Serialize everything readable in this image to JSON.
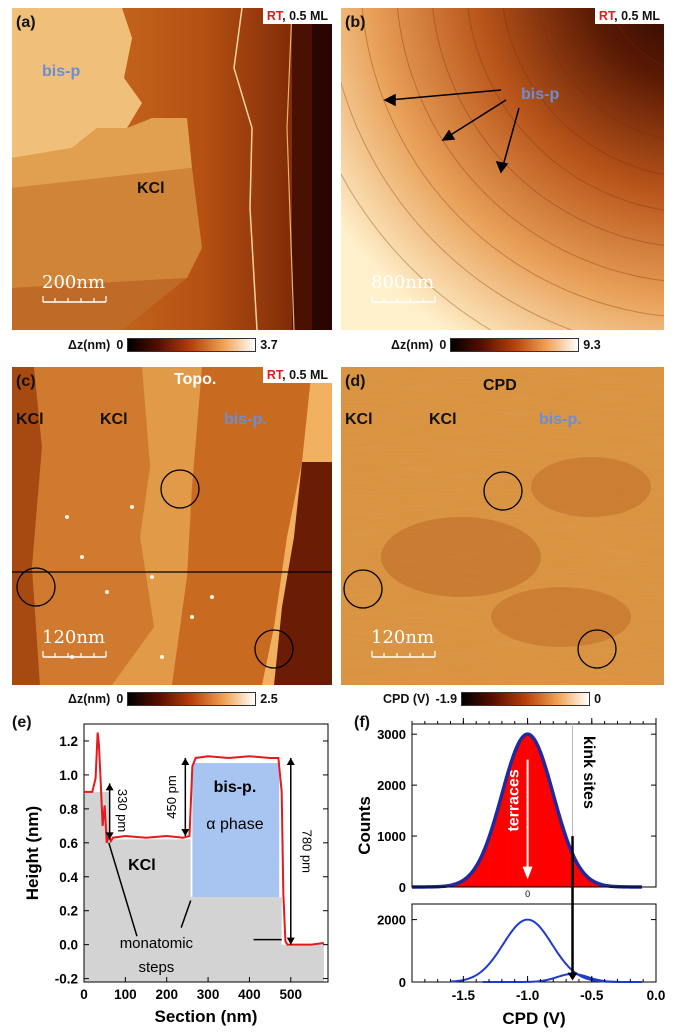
{
  "panels": {
    "a": {
      "label": "(a)",
      "cond_rt": "RT",
      "cond_rest": ", 0.5 ML",
      "text1": "bis-p",
      "text2": "KCl",
      "scale": "200nm",
      "cbar_label": "Δz(nm)",
      "cbar_min": "0",
      "cbar_max": "3.7"
    },
    "b": {
      "label": "(b)",
      "cond_rt": "RT",
      "cond_rest": ", 0.5 ML",
      "text1": "bis-p",
      "scale": "800nm",
      "cbar_label": "Δz(nm)",
      "cbar_min": "0",
      "cbar_max": "9.3"
    },
    "c": {
      "label": "(c)",
      "cond_rt": "RT",
      "cond_rest": ", 0.5 ML",
      "title": "Topo.",
      "text1": "KCl",
      "text2": "KCl",
      "text3": "bis-p.",
      "scale": "120nm",
      "cbar_label": "Δz(nm)",
      "cbar_min": "0",
      "cbar_max": "2.5"
    },
    "d": {
      "label": "(d)",
      "title": "CPD",
      "text1": "KCl",
      "text2": "KCl",
      "text3": "bis-p.",
      "scale": "120nm",
      "cbar_label": "CPD (V)",
      "cbar_min": "-1.9",
      "cbar_max": "0"
    },
    "e": {
      "label": "(e)"
    },
    "f": {
      "label": "(f)"
    }
  },
  "colors": {
    "afm_dark": "#2a0500",
    "afm_mid": "#c45a1a",
    "afm_light": "#fff5dc",
    "profile": "#e41a1c",
    "bisp_fill": "#a8c4f0",
    "kcl_fill": "#d3d3d3",
    "hist_fill": "#ff0000",
    "gauss": "#1f2a9e"
  },
  "chart_data": [
    {
      "type": "line",
      "panel": "(e)",
      "xlabel": "Section (nm)",
      "ylabel": "Height (nm)",
      "xlim": [
        0,
        590
      ],
      "ylim": [
        -0.22,
        1.3
      ],
      "xticks": [
        0,
        100,
        200,
        300,
        400,
        500
      ],
      "yticks": [
        -0.2,
        0.0,
        0.2,
        0.4,
        0.6,
        0.8,
        1.0,
        1.2
      ],
      "series": [
        {
          "x": [
            0,
            20,
            28,
            33,
            36,
            40,
            45,
            50,
            55,
            60,
            65,
            70,
            100,
            150,
            200,
            240,
            255,
            262,
            270,
            300,
            350,
            400,
            450,
            470,
            478,
            482,
            487,
            492,
            500,
            550,
            580
          ],
          "y": [
            0.9,
            0.9,
            0.98,
            1.25,
            1.18,
            0.98,
            0.7,
            0.82,
            0.6,
            0.64,
            0.61,
            0.63,
            0.64,
            0.63,
            0.64,
            0.63,
            0.64,
            1.05,
            1.1,
            1.11,
            1.1,
            1.11,
            1.1,
            1.1,
            0.9,
            0.3,
            0.02,
            0.0,
            0.0,
            0.0,
            0.01
          ]
        }
      ],
      "annotations": [
        "330 pm",
        "450 pm",
        "780 pm",
        "KCl",
        "bis-p.",
        "α phase",
        "monatomic",
        "steps"
      ]
    },
    {
      "type": "bar",
      "panel": "(f)",
      "xlabel": "CPD (V)",
      "ylabel": "Counts",
      "xlim": [
        -1.9,
        0.0
      ],
      "xticks": [
        -1.5,
        -1.0,
        -0.5,
        0.0
      ],
      "xticklabels": [
        "-1.5",
        "-1.0",
        "-0.5",
        "0.0"
      ],
      "upper": {
        "ylim": [
          0,
          3200
        ],
        "yticks": [
          0,
          1000,
          2000,
          3000
        ],
        "gauss_center": -1.0,
        "gauss_peak": 3000,
        "gauss_sigma": 0.2
      },
      "lower": {
        "ylim": [
          0,
          2500
        ],
        "yticks": [
          0,
          2000
        ],
        "gauss1": {
          "center": -1.0,
          "peak": 2000,
          "sigma": 0.19
        },
        "gauss2": {
          "center": -0.65,
          "peak": 260,
          "sigma": 0.12
        }
      },
      "annotations": [
        "terraces",
        "kink sites",
        "0"
      ]
    }
  ]
}
